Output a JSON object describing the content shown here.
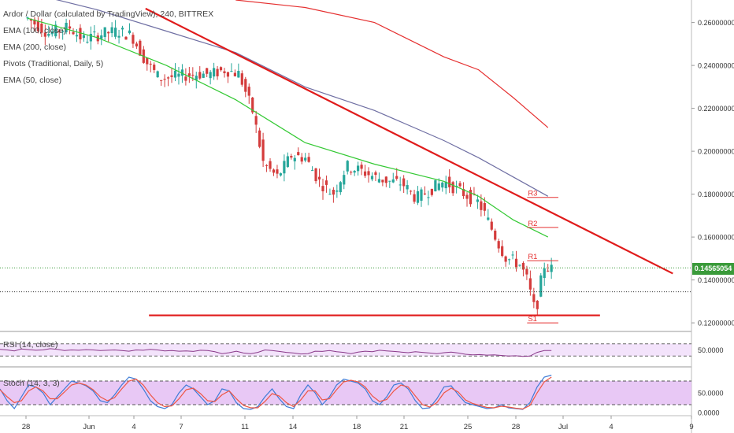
{
  "header": {
    "title": "Ardor / Dollar (calculated by TradingView), 240, BITTREX",
    "indicators": [
      "EMA (100, close)",
      "EMA (200, close)",
      "Pivots (Traditional, Daily, 5)",
      "EMA (50, close)"
    ]
  },
  "rsi_pane": {
    "label": "RSI (14, close)",
    "ticks": [
      "50.0000"
    ]
  },
  "stoch_pane": {
    "label": "Stoch (14, 3, 3)",
    "ticks": [
      "50.0000",
      "0.0000"
    ]
  },
  "last_price": "0.14565054",
  "colors": {
    "ema50": "#34c934",
    "ema100": "#6f6fa3",
    "ema200": "#e53030",
    "trendline": "#e01b1b",
    "pivot": "#e53030",
    "last_price_line": "#3a9a3a",
    "up_candle": "#26a69a",
    "down_candle": "#d43c3c",
    "rsi_line": "#8a3a8a",
    "rsi_band": "#f3e3fb",
    "stoch_band": "#e8c8f5",
    "stoch_k": "#3d7bd6",
    "stoch_d": "#ee5544"
  },
  "chart_data": [
    {
      "type": "candlestick",
      "title": "Ardor / Dollar (calculated by TradingView), 240, BITTREX",
      "x_ticks": [
        "28",
        "Jun",
        "4",
        "7",
        "11",
        "14",
        "18",
        "21",
        "25",
        "28",
        "Jul",
        "4",
        "9"
      ],
      "y_ticks": [
        "0.26000000",
        "0.24000000",
        "0.22000000",
        "0.20000000",
        "0.18000000",
        "0.16000000",
        "0.14000000",
        "0.12000000"
      ],
      "ylim": [
        0.116,
        0.2705
      ],
      "last_price": 0.14565054,
      "dotted_level": 0.1345,
      "close_path": [
        [
          0.0,
          0.262
        ],
        [
          3.0,
          0.255
        ],
        [
          6.0,
          0.258
        ],
        [
          8.0,
          0.252
        ],
        [
          11.0,
          0.255
        ],
        [
          13.0,
          0.256
        ],
        [
          15.0,
          0.254
        ],
        [
          17.0,
          0.242
        ],
        [
          19.0,
          0.234
        ],
        [
          22.0,
          0.235
        ],
        [
          24.0,
          0.236
        ],
        [
          26.5,
          0.236
        ],
        [
          28.5,
          0.238
        ],
        [
          30.5,
          0.236
        ],
        [
          32.5,
          0.218
        ],
        [
          34.0,
          0.194
        ],
        [
          36.0,
          0.188
        ],
        [
          38.0,
          0.198
        ],
        [
          40.0,
          0.197
        ],
        [
          42.0,
          0.186
        ],
        [
          44.0,
          0.18
        ],
        [
          46.0,
          0.193
        ],
        [
          48.0,
          0.191
        ],
        [
          50.0,
          0.188
        ],
        [
          52.0,
          0.186
        ],
        [
          54.0,
          0.185
        ],
        [
          56.0,
          0.178
        ],
        [
          58.0,
          0.182
        ],
        [
          60.0,
          0.186
        ],
        [
          62.0,
          0.182
        ],
        [
          64.0,
          0.178
        ],
        [
          65.0,
          0.176
        ],
        [
          66.0,
          0.17
        ],
        [
          67.0,
          0.163
        ],
        [
          68.0,
          0.156
        ],
        [
          69.0,
          0.15
        ],
        [
          70.0,
          0.149
        ],
        [
          71.0,
          0.147
        ],
        [
          72.0,
          0.14
        ],
        [
          73.0,
          0.127
        ],
        [
          73.6,
          0.13
        ],
        [
          74.3,
          0.147
        ],
        [
          75.0,
          0.146
        ],
        [
          75.5,
          0.145
        ]
      ],
      "series": [
        {
          "name": "EMA (50, close)",
          "points": [
            [
              0,
              0.262
            ],
            [
              10,
              0.253
            ],
            [
              20,
              0.24
            ],
            [
              30,
              0.224
            ],
            [
              40,
              0.204
            ],
            [
              50,
              0.194
            ],
            [
              60,
              0.186
            ],
            [
              65,
              0.179
            ],
            [
              70,
              0.168
            ],
            [
              75,
              0.16
            ]
          ]
        },
        {
          "name": "EMA (100, close)",
          "points": [
            [
              0,
              0.274
            ],
            [
              10,
              0.266
            ],
            [
              20,
              0.256
            ],
            [
              30,
              0.246
            ],
            [
              40,
              0.23
            ],
            [
              50,
              0.219
            ],
            [
              60,
              0.205
            ],
            [
              65,
              0.197
            ],
            [
              70,
              0.188
            ],
            [
              75,
              0.179
            ]
          ]
        },
        {
          "name": "EMA (200, close)",
          "points": [
            [
              30,
              0.2705
            ],
            [
              40,
              0.267
            ],
            [
              50,
              0.26
            ],
            [
              60,
              0.244
            ],
            [
              65,
              0.238
            ],
            [
              70,
              0.225
            ],
            [
              75,
              0.211
            ]
          ]
        }
      ],
      "trendlines": [
        {
          "from": [
            17.0,
            0.2665
          ],
          "to": [
            93.0,
            0.143
          ]
        },
        {
          "from": [
            17.5,
            0.1235
          ],
          "to": [
            82.5,
            0.1235
          ]
        }
      ],
      "pivots": [
        {
          "label": "R3",
          "value": 0.1785,
          "x_range": [
            72.0,
            76.5
          ]
        },
        {
          "label": "R2",
          "value": 0.1645,
          "x_range": [
            72.0,
            76.5
          ]
        },
        {
          "label": "R1",
          "value": 0.149,
          "x_range": [
            72.0,
            76.5
          ]
        },
        {
          "label": "S1",
          "value": 0.12,
          "x_range": [
            72.0,
            76.5
          ]
        }
      ]
    },
    {
      "type": "line",
      "title": "RSI (14, close)",
      "ylim": [
        0,
        100
      ],
      "y_ticks": [
        "50.0000"
      ],
      "band": [
        30,
        70
      ],
      "values": [
        52,
        50,
        47,
        53,
        51,
        49,
        50,
        54,
        52,
        48,
        50,
        49,
        51,
        50,
        48,
        49,
        50,
        48,
        46,
        50,
        49,
        52,
        50,
        47,
        48,
        46,
        47,
        45,
        49,
        48,
        44,
        38,
        41,
        46,
        40,
        38,
        42,
        50,
        48,
        45,
        42,
        40,
        37,
        38,
        46,
        45,
        48,
        44,
        42,
        38,
        43,
        46,
        44,
        49,
        47,
        45,
        43,
        41,
        44,
        42,
        40,
        38,
        41,
        43,
        40,
        36,
        34,
        35,
        33,
        34,
        32,
        30,
        31,
        29,
        30,
        42,
        48,
        48
      ]
    },
    {
      "type": "line",
      "title": "Stoch (14, 3, 3)",
      "ylim": [
        0,
        100
      ],
      "y_ticks": [
        "50.0000",
        "0.0000"
      ],
      "band": [
        20,
        80
      ],
      "series": [
        {
          "name": "%K",
          "values": [
            60,
            30,
            10,
            40,
            70,
            65,
            50,
            20,
            40,
            60,
            80,
            75,
            68,
            55,
            30,
            25,
            45,
            70,
            90,
            85,
            60,
            30,
            15,
            10,
            20,
            50,
            70,
            60,
            40,
            20,
            30,
            60,
            55,
            25,
            10,
            8,
            15,
            40,
            60,
            35,
            15,
            10,
            45,
            70,
            50,
            20,
            40,
            70,
            85,
            80,
            75,
            60,
            30,
            20,
            40,
            70,
            75,
            60,
            30,
            10,
            12,
            35,
            65,
            68,
            45,
            25,
            20,
            15,
            10,
            12,
            20,
            12,
            10,
            8,
            25,
            65,
            90,
            95
          ]
        },
        {
          "name": "%D",
          "values": [
            58,
            40,
            25,
            30,
            55,
            65,
            55,
            35,
            35,
            52,
            70,
            75,
            70,
            58,
            40,
            30,
            38,
            60,
            80,
            85,
            70,
            45,
            25,
            15,
            17,
            35,
            58,
            62,
            48,
            30,
            28,
            45,
            55,
            35,
            18,
            12,
            12,
            28,
            48,
            42,
            25,
            15,
            32,
            55,
            55,
            32,
            35,
            58,
            78,
            82,
            78,
            65,
            42,
            28,
            33,
            55,
            70,
            65,
            42,
            20,
            14,
            25,
            50,
            62,
            52,
            32,
            23,
            18,
            13,
            12,
            16,
            14,
            11,
            9,
            18,
            50,
            78,
            90
          ]
        }
      ]
    }
  ]
}
